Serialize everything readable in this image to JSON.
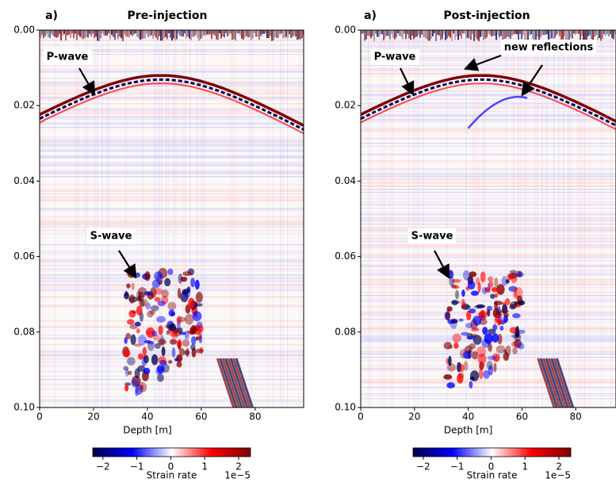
{
  "chart_data": [
    {
      "type": "heatmap",
      "title": "Pre-injection",
      "panel_label": "a)",
      "xlabel": "Depth [m]",
      "xlim": [
        0,
        98
      ],
      "xticks": [
        0,
        20,
        40,
        60,
        80
      ],
      "ylim": [
        0.1,
        0
      ],
      "yticks": [
        {
          "value": 0,
          "label": "0.00"
        },
        {
          "value": 0.02,
          "label": "0.02"
        },
        {
          "value": 0.04,
          "label": "0.04"
        },
        {
          "value": 0.06,
          "label": "0.06"
        },
        {
          "value": 0.08,
          "label": "0.08"
        },
        {
          "value": 0.1,
          "label": "0.10"
        }
      ],
      "colormap": [
        "#00004c",
        "#0000ff",
        "#ffffff",
        "#ff0000",
        "#7f0000"
      ],
      "colorbar": {
        "label": "Strain rate",
        "scale_label": "1e−5",
        "clim": [
          -2.3,
          2.35
        ],
        "ticks": [
          {
            "value": -2,
            "label": "−2"
          },
          {
            "value": -1,
            "label": "−1"
          },
          0,
          1,
          2
        ]
      },
      "annotations": [
        "P-wave",
        "S-wave"
      ]
    },
    {
      "type": "heatmap",
      "title": "Post-injection",
      "panel_label": "a)",
      "xlabel": "Depth [m]",
      "xlim": [
        0,
        95
      ],
      "xticks": [
        0,
        20,
        40,
        60,
        80
      ],
      "ylim": [
        0.1,
        0
      ],
      "yticks": [
        {
          "value": 0,
          "label": "0.00"
        },
        {
          "value": 0.02,
          "label": "0.02"
        },
        {
          "value": 0.04,
          "label": "0.04"
        },
        {
          "value": 0.06,
          "label": "0.06"
        },
        {
          "value": 0.08,
          "label": "0.08"
        },
        {
          "value": 0.1,
          "label": "0.10"
        }
      ],
      "colormap": [
        "#00004c",
        "#0000ff",
        "#ffffff",
        "#ff0000",
        "#7f0000"
      ],
      "colorbar": {
        "label": "Strain rate",
        "scale_label": "1e−5",
        "clim": [
          -2.3,
          2.35
        ],
        "ticks": [
          {
            "value": -2,
            "label": "−2"
          },
          {
            "value": -1,
            "label": "−1"
          },
          0,
          1,
          2
        ]
      },
      "annotations": [
        "P-wave",
        "new reflections",
        "S-wave"
      ]
    }
  ]
}
